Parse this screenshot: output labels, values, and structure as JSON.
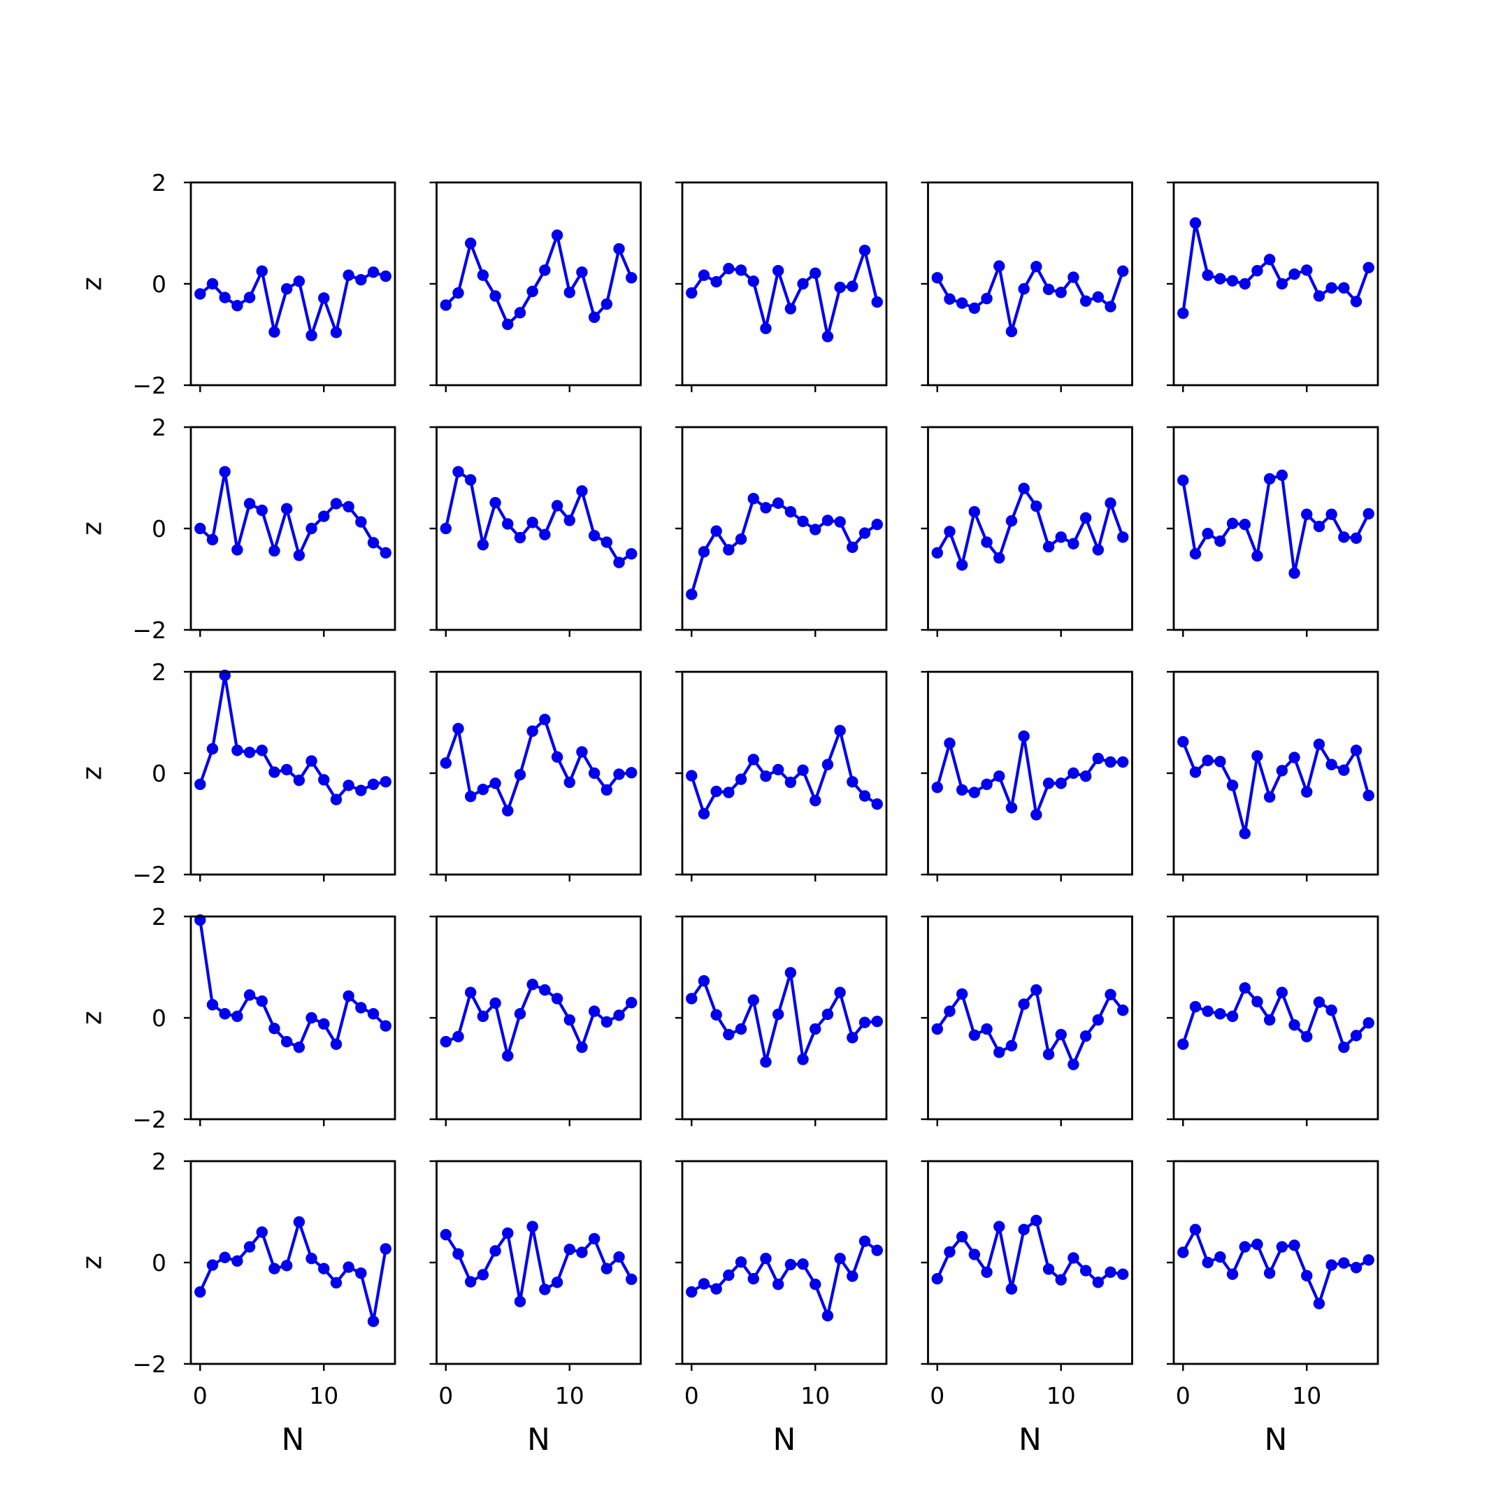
{
  "chart_data": {
    "type": "line",
    "layout": {
      "rows": 5,
      "cols": 5,
      "sharex": true,
      "sharey": true
    },
    "xlabel": "N",
    "ylabel": "z",
    "xlim": [
      -0.75,
      15.75
    ],
    "ylim": [
      -2,
      2
    ],
    "xticks": [
      0,
      10
    ],
    "yticks": [
      -2,
      0,
      2
    ],
    "tick_labels": {
      "x": [
        "0",
        "10"
      ],
      "y": [
        "−2",
        "0",
        "2"
      ]
    },
    "grid": false,
    "legend": "none",
    "marker": "circle",
    "x": [
      0,
      1,
      2,
      3,
      4,
      5,
      6,
      7,
      8,
      9,
      10,
      11,
      12,
      13,
      14,
      15
    ],
    "panels": [
      [
        {
          "values": [
            -0.2,
            0.0,
            -0.27,
            -0.43,
            -0.27,
            0.25,
            -0.95,
            -0.1,
            0.05,
            -1.02,
            -0.28,
            -0.96,
            0.17,
            0.08,
            0.23,
            0.15
          ]
        },
        {
          "values": [
            -0.42,
            -0.18,
            0.8,
            0.17,
            -0.24,
            -0.8,
            -0.57,
            -0.15,
            0.27,
            0.96,
            -0.17,
            0.23,
            -0.66,
            -0.4,
            0.69,
            0.12
          ]
        },
        {
          "values": [
            -0.18,
            0.17,
            0.04,
            0.3,
            0.27,
            0.05,
            -0.88,
            0.26,
            -0.49,
            0.0,
            0.21,
            -1.04,
            -0.07,
            -0.05,
            0.66,
            -0.36
          ]
        },
        {
          "values": [
            0.12,
            -0.3,
            -0.38,
            -0.48,
            -0.29,
            0.35,
            -0.94,
            -0.1,
            0.34,
            -0.11,
            -0.17,
            0.13,
            -0.34,
            -0.26,
            -0.45,
            0.25
          ]
        },
        {
          "values": [
            -0.58,
            1.2,
            0.17,
            0.1,
            0.06,
            0.0,
            0.26,
            0.48,
            0.0,
            0.19,
            0.27,
            -0.24,
            -0.08,
            -0.08,
            -0.35,
            0.32
          ]
        }
      ],
      [
        {
          "values": [
            0.0,
            -0.22,
            1.12,
            -0.42,
            0.49,
            0.36,
            -0.44,
            0.39,
            -0.53,
            0.0,
            0.24,
            0.49,
            0.43,
            0.13,
            -0.28,
            -0.48
          ]
        },
        {
          "values": [
            0.0,
            1.12,
            0.96,
            -0.32,
            0.51,
            0.09,
            -0.18,
            0.12,
            -0.12,
            0.45,
            0.16,
            0.74,
            -0.14,
            -0.27,
            -0.67,
            -0.5
          ]
        },
        {
          "values": [
            -1.3,
            -0.46,
            -0.05,
            -0.42,
            -0.21,
            0.59,
            0.41,
            0.5,
            0.33,
            0.14,
            -0.02,
            0.16,
            0.13,
            -0.37,
            -0.09,
            0.08
          ]
        },
        {
          "values": [
            -0.48,
            -0.06,
            -0.72,
            0.33,
            -0.27,
            -0.58,
            0.15,
            0.79,
            0.44,
            -0.36,
            -0.17,
            -0.3,
            0.21,
            -0.42,
            0.5,
            -0.17
          ]
        },
        {
          "values": [
            0.95,
            -0.5,
            -0.1,
            -0.25,
            0.1,
            0.08,
            -0.54,
            0.98,
            1.05,
            -0.88,
            0.28,
            0.04,
            0.28,
            -0.17,
            -0.19,
            0.29
          ]
        }
      ],
      [
        {
          "values": [
            -0.22,
            0.48,
            1.93,
            0.45,
            0.41,
            0.45,
            0.02,
            0.07,
            -0.14,
            0.24,
            -0.13,
            -0.52,
            -0.24,
            -0.34,
            -0.22,
            -0.17
          ]
        },
        {
          "values": [
            0.2,
            0.88,
            -0.46,
            -0.32,
            -0.2,
            -0.74,
            -0.03,
            0.83,
            1.06,
            0.32,
            -0.18,
            0.42,
            0.0,
            -0.33,
            -0.02,
            0.01
          ]
        },
        {
          "values": [
            -0.05,
            -0.8,
            -0.36,
            -0.38,
            -0.12,
            0.27,
            -0.06,
            0.07,
            -0.18,
            0.06,
            -0.54,
            0.17,
            0.84,
            -0.17,
            -0.45,
            -0.61
          ]
        },
        {
          "values": [
            -0.28,
            0.59,
            -0.33,
            -0.38,
            -0.22,
            -0.06,
            -0.68,
            0.73,
            -0.82,
            -0.2,
            -0.2,
            0.0,
            -0.06,
            0.29,
            0.22,
            0.22
          ]
        },
        {
          "values": [
            0.62,
            0.02,
            0.25,
            0.23,
            -0.24,
            -1.19,
            0.34,
            -0.47,
            0.05,
            0.31,
            -0.37,
            0.57,
            0.17,
            0.06,
            0.45,
            -0.44
          ]
        }
      ],
      [
        {
          "values": [
            1.93,
            0.26,
            0.08,
            0.03,
            0.45,
            0.33,
            -0.21,
            -0.47,
            -0.58,
            0.0,
            -0.12,
            -0.52,
            0.43,
            0.2,
            0.08,
            -0.16
          ]
        },
        {
          "values": [
            -0.47,
            -0.37,
            0.5,
            0.03,
            0.29,
            -0.75,
            0.08,
            0.66,
            0.55,
            0.38,
            -0.04,
            -0.58,
            0.13,
            -0.08,
            0.05,
            0.3
          ]
        },
        {
          "values": [
            0.38,
            0.73,
            0.06,
            -0.33,
            -0.22,
            0.35,
            -0.87,
            0.07,
            0.89,
            -0.82,
            -0.22,
            0.07,
            0.5,
            -0.39,
            -0.09,
            -0.07
          ]
        },
        {
          "values": [
            -0.22,
            0.13,
            0.47,
            -0.34,
            -0.22,
            -0.68,
            -0.55,
            0.27,
            0.55,
            -0.72,
            -0.33,
            -0.92,
            -0.36,
            -0.04,
            0.46,
            0.15
          ]
        },
        {
          "values": [
            -0.52,
            0.22,
            0.13,
            0.08,
            0.03,
            0.59,
            0.32,
            -0.04,
            0.5,
            -0.14,
            -0.37,
            0.31,
            0.15,
            -0.58,
            -0.35,
            -0.1
          ]
        }
      ],
      [
        {
          "values": [
            -0.58,
            -0.05,
            0.1,
            0.03,
            0.31,
            0.6,
            -0.12,
            -0.06,
            0.8,
            0.08,
            -0.12,
            -0.4,
            -0.09,
            -0.21,
            -1.16,
            0.27
          ]
        },
        {
          "values": [
            0.55,
            0.17,
            -0.38,
            -0.24,
            0.23,
            0.58,
            -0.77,
            0.71,
            -0.53,
            -0.39,
            0.26,
            0.2,
            0.47,
            -0.12,
            0.11,
            -0.33
          ]
        },
        {
          "values": [
            -0.58,
            -0.42,
            -0.52,
            -0.25,
            0.01,
            -0.32,
            0.08,
            -0.43,
            -0.04,
            -0.03,
            -0.43,
            -1.05,
            0.08,
            -0.27,
            0.42,
            0.24
          ]
        },
        {
          "values": [
            -0.32,
            0.21,
            0.51,
            0.16,
            -0.19,
            0.71,
            -0.52,
            0.65,
            0.83,
            -0.13,
            -0.34,
            0.09,
            -0.16,
            -0.39,
            -0.19,
            -0.23
          ]
        },
        {
          "values": [
            0.2,
            0.65,
            0.0,
            0.11,
            -0.23,
            0.31,
            0.36,
            -0.21,
            0.31,
            0.34,
            -0.26,
            -0.81,
            -0.05,
            -0.01,
            -0.1,
            0.05
          ]
        }
      ]
    ]
  },
  "colors": {
    "line": "#0000ee",
    "marker": "#0000ee",
    "axes": "#000000",
    "background": "#ffffff"
  }
}
